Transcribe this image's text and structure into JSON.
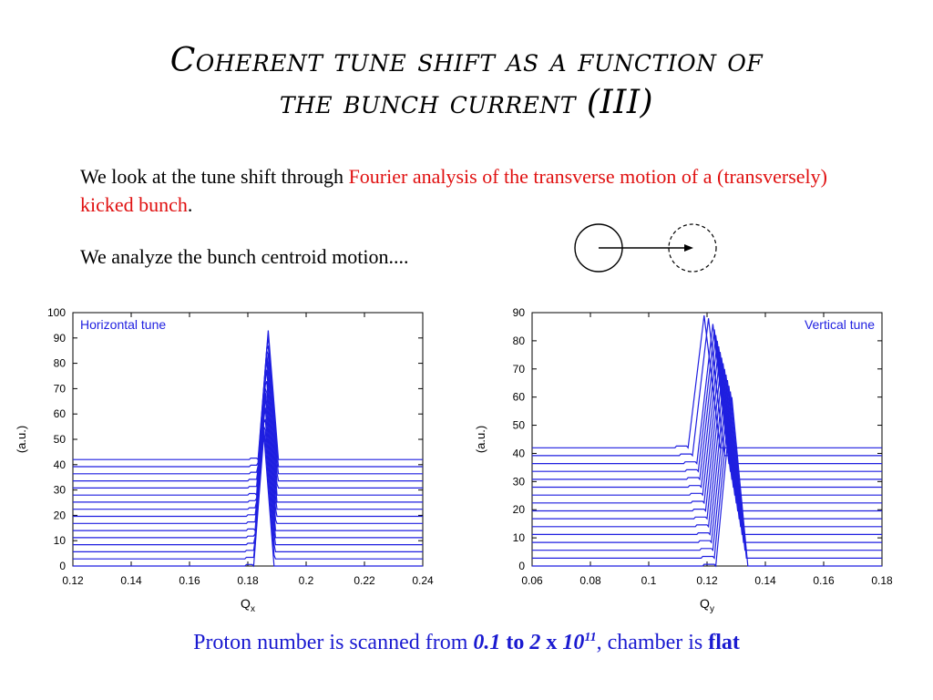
{
  "slide": {
    "title_line1": "Coherent tune shift as a function of",
    "title_line2": "the bunch current (III)",
    "para1_plain": "We look at the tune shift through ",
    "para1_red": "Fourier analysis of the transverse motion of a (transversely) kicked bunch",
    "para1_end": ".",
    "para2": "We analyze the bunch centroid motion....",
    "caption_prefix": "Proton number is scanned from ",
    "caption_from": "0.1",
    "caption_to_word": " to ",
    "caption_to": "2",
    "caption_x": " x ",
    "caption_base": "10",
    "caption_exp": "11",
    "caption_mid": ", chamber is ",
    "caption_flat": "flat"
  },
  "colors": {
    "series": "#1f1fe0",
    "red_text": "#e01010",
    "caption": "#1a1ad0"
  },
  "chart_data": [
    {
      "type": "line",
      "title": "Horizontal tune",
      "xlabel": "Q_x",
      "ylabel": "(a.u.)",
      "xlim": [
        0.12,
        0.24
      ],
      "ylim": [
        0,
        100
      ],
      "xticks": [
        "0.12",
        "0.14",
        "0.16",
        "0.18",
        "0.2",
        "0.22",
        "0.24"
      ],
      "yticks": [
        "0",
        "10",
        "20",
        "30",
        "40",
        "50",
        "60",
        "70",
        "80",
        "90",
        "100"
      ],
      "legend_position": "top-left",
      "series_count": 16,
      "baseline_offsets": [
        0,
        2.8,
        5.6,
        8.4,
        11.2,
        14,
        16.8,
        19.6,
        22.4,
        25.2,
        28,
        30.8,
        33.6,
        36.4,
        39.2,
        42
      ],
      "peak_positions": [
        0.1855,
        0.1856,
        0.1857,
        0.1858,
        0.1859,
        0.186,
        0.1861,
        0.1862,
        0.1863,
        0.1864,
        0.1865,
        0.1866,
        0.1867,
        0.1868,
        0.1869,
        0.187
      ],
      "peak_heights": [
        52,
        55,
        58,
        61,
        64,
        67,
        70,
        73,
        76,
        79,
        82,
        85,
        88,
        90,
        92,
        93
      ],
      "peak_halfwidth": 0.0035
    },
    {
      "type": "line",
      "title": "Vertical tune",
      "xlabel": "Q_y",
      "ylabel": "(a.u.)",
      "xlim": [
        0.06,
        0.18
      ],
      "ylim": [
        0,
        90
      ],
      "xticks": [
        "0.06",
        "0.08",
        "0.1",
        "0.12",
        "0.14",
        "0.16",
        "0.18"
      ],
      "yticks": [
        "0",
        "10",
        "20",
        "30",
        "40",
        "50",
        "60",
        "70",
        "80",
        "90"
      ],
      "legend_position": "top-right",
      "series_count": 16,
      "baseline_offsets": [
        0,
        2.8,
        5.6,
        8.4,
        11.2,
        14,
        16.8,
        19.6,
        22.4,
        25.2,
        28,
        30.8,
        33.6,
        36.4,
        39.2,
        42
      ],
      "peak_positions": [
        0.1285,
        0.128,
        0.1275,
        0.127,
        0.1265,
        0.126,
        0.1255,
        0.125,
        0.1245,
        0.124,
        0.1235,
        0.123,
        0.1225,
        0.122,
        0.1205,
        0.119
      ],
      "peak_heights": [
        60,
        62,
        64,
        66,
        68,
        70,
        72,
        74,
        76,
        78,
        80,
        82,
        84,
        86,
        88,
        89
      ],
      "peak_halfwidth": 0.0055
    }
  ]
}
